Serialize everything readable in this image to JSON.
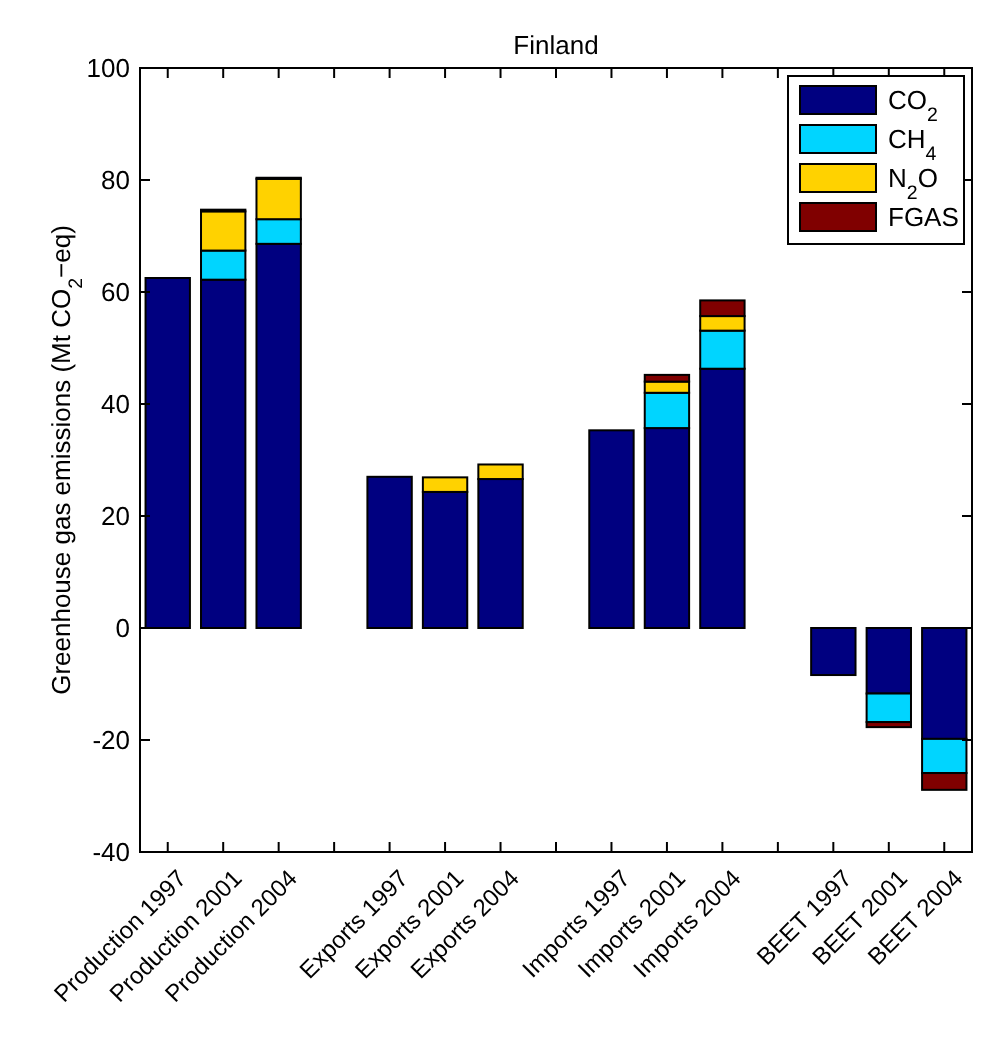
{
  "chart_data": {
    "type": "bar",
    "title": "Finland",
    "ylabel": "Greenhouse gas emissions (Mt CO$_{2}$−eq)",
    "categories": [
      "Production 1997",
      "Production 2001",
      "Production 2004",
      null,
      "Exports 1997",
      "Exports 2001",
      "Exports 2004",
      null,
      "Imports 1997",
      "Imports 2001",
      "Imports 2004",
      null,
      "BEET 1997",
      "BEET 2001",
      "BEET 2004"
    ],
    "stacked": true,
    "ylim": [
      -40,
      100
    ],
    "yticks": [
      -40,
      -20,
      0,
      20,
      40,
      60,
      80,
      100
    ],
    "grid": false,
    "legend": "top right",
    "series": [
      {
        "name": "CO$_{2}$",
        "color": "#000080",
        "values": [
          62.5,
          62.2,
          68.6,
          0,
          27.0,
          24.3,
          26.6,
          0,
          35.3,
          35.7,
          46.3,
          0,
          -8.4,
          -11.7,
          -19.8
        ]
      },
      {
        "name": "CH$_{4}$",
        "color": "#00d5ff",
        "values": [
          0,
          5.2,
          4.4,
          0,
          0,
          null,
          null,
          0,
          0,
          6.3,
          6.8,
          0,
          0,
          -5.1,
          -6.1
        ]
      },
      {
        "name": "N$_{2}$O",
        "color": "#ffd200",
        "values": [
          0,
          7.0,
          7.2,
          0,
          0,
          2.6,
          2.6,
          0,
          0,
          2.0,
          2.6,
          0,
          0,
          0,
          0
        ]
      },
      {
        "name": "FGAS",
        "color": "#800000",
        "values": [
          0,
          0.3,
          0.2,
          0,
          0,
          0,
          0,
          0,
          0,
          1.2,
          2.8,
          0,
          0,
          -0.9,
          -3.0
        ]
      }
    ]
  }
}
